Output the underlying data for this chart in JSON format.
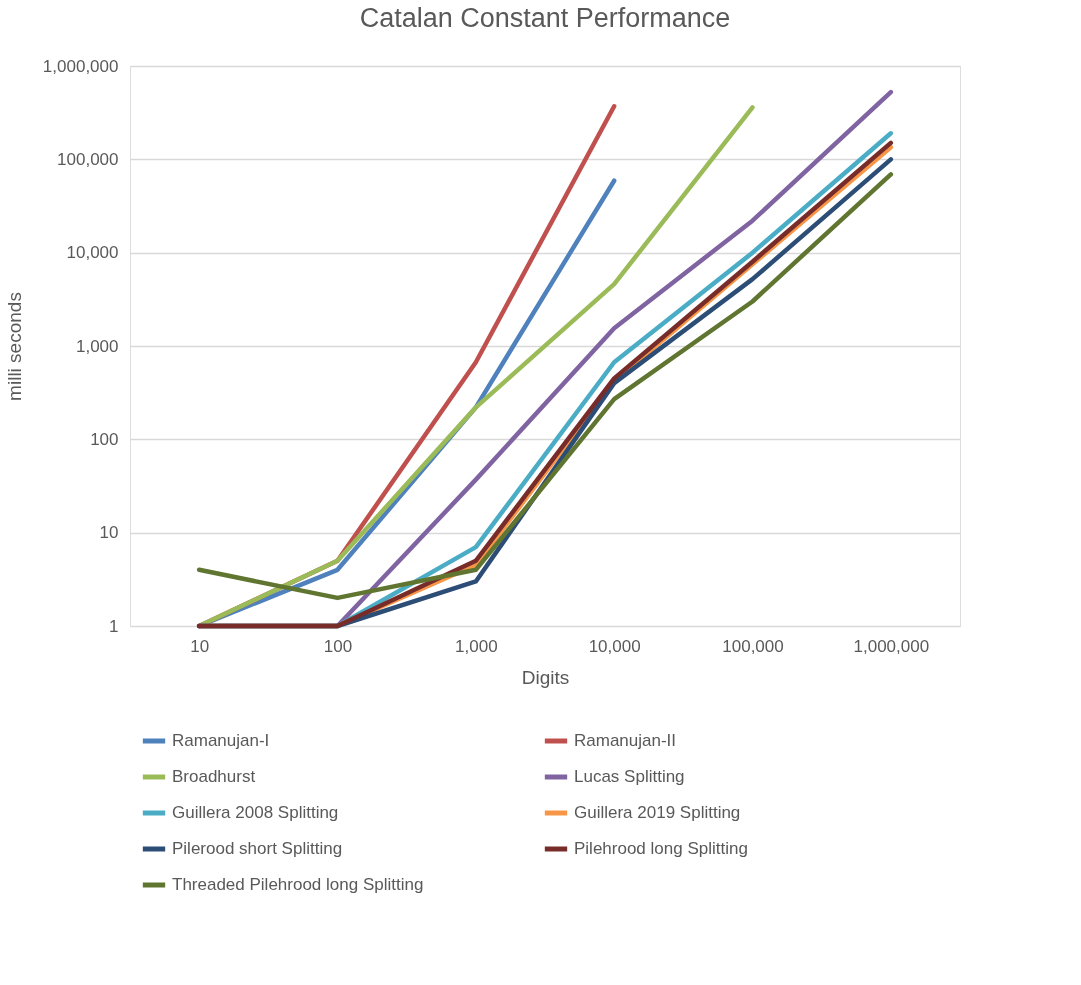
{
  "chart_data": {
    "type": "line",
    "title": "Catalan Constant Performance",
    "xlabel": "Digits",
    "ylabel": "milli seconds",
    "categories": [
      "10",
      "100",
      "1,000",
      "10,000",
      "100,000",
      "1,000,000"
    ],
    "log": "y",
    "ylim": [
      1,
      1000000
    ],
    "yticks": [
      1,
      10,
      100,
      {
        "value": 1000,
        "label": "1,000"
      },
      {
        "value": 10000,
        "label": "10,000"
      },
      {
        "value": 100000,
        "label": "100,000"
      },
      {
        "value": 1000000,
        "label": "1,000,000"
      }
    ],
    "grid": "y",
    "legend": "bottom",
    "marker": "none",
    "line_style": "solid",
    "series": [
      {
        "name": "Ramanujan-I",
        "color": "#4f81bd",
        "values": [
          1,
          4,
          220,
          59000,
          null,
          null
        ]
      },
      {
        "name": "Ramanujan-II",
        "color": "#c0504d",
        "values": [
          1,
          5,
          670,
          370000,
          null,
          null
        ]
      },
      {
        "name": "Broadhurst",
        "color": "#9bbb59",
        "values": [
          1,
          5,
          220,
          4600,
          360000,
          null
        ]
      },
      {
        "name": "Lucas Splitting",
        "color": "#8064a2",
        "values": [
          1,
          1,
          37,
          1550,
          22000,
          525000
        ]
      },
      {
        "name": "Guillera 2008 Splitting",
        "color": "#4bacc6",
        "values": [
          1,
          1,
          7,
          670,
          10000,
          190000
        ]
      },
      {
        "name": "Guillera 2019 Splitting",
        "color": "#f79646",
        "values": [
          1,
          1,
          4.5,
          420,
          7500,
          135000
        ]
      },
      {
        "name": "Pilerood short Splitting",
        "color": "#2c4d75",
        "values": [
          1,
          1,
          3,
          400,
          5200,
          100000
        ]
      },
      {
        "name": "Pilehrood long Splitting",
        "color": "#772c2a",
        "values": [
          1,
          1,
          5,
          450,
          8000,
          150000
        ]
      },
      {
        "name": "Threaded Pilehrood long Splitting",
        "color": "#5f7530",
        "values": [
          4,
          2,
          4,
          270,
          3000,
          69000
        ]
      }
    ]
  }
}
